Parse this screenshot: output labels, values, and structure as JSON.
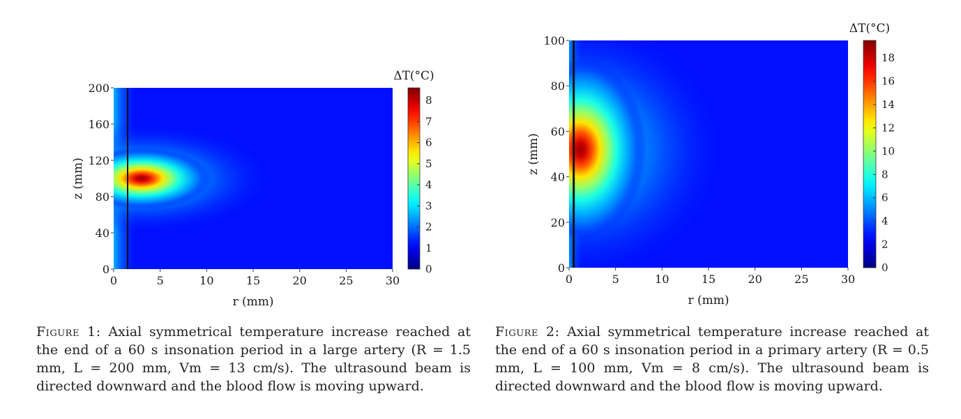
{
  "chart_data": [
    {
      "type": "heatmap",
      "xlabel": "r (mm)",
      "ylabel": "z (mm)",
      "xlim": [
        0,
        30
      ],
      "ylim": [
        0,
        200
      ],
      "x_ticks": [
        "0",
        "5",
        "10",
        "15",
        "20",
        "25",
        "30"
      ],
      "y_ticks": [
        "0",
        "40",
        "80",
        "120",
        "160",
        "200"
      ],
      "colorbar": {
        "label": "ΔT(°C)",
        "range": [
          0,
          8.6
        ],
        "ticks": [
          "0",
          "1",
          "2",
          "3",
          "4",
          "5",
          "6",
          "7",
          "8"
        ],
        "colormap": "jet"
      },
      "artery_wall_r": 1.5,
      "peak": {
        "r": 3,
        "z": 100,
        "dT": 8.6
      },
      "caption_label": "Figure 1:",
      "caption_text": "Axial symmetrical temperature increase reached at the end of a 60 s insonation period in a large artery (R = 1.5 mm, L = 200 mm, Vm = 13 cm/s). The ultrasound beam is directed downward and the blood flow is moving upward."
    },
    {
      "type": "heatmap",
      "xlabel": "r (mm)",
      "ylabel": "z (mm)",
      "xlim": [
        0,
        30
      ],
      "ylim": [
        0,
        100
      ],
      "x_ticks": [
        "0",
        "5",
        "10",
        "15",
        "20",
        "25",
        "30"
      ],
      "y_ticks": [
        "0",
        "20",
        "40",
        "60",
        "80",
        "100"
      ],
      "colorbar": {
        "label": "ΔT(°C)",
        "range": [
          0,
          19.5
        ],
        "ticks": [
          "0",
          "2",
          "4",
          "6",
          "8",
          "10",
          "12",
          "14",
          "16",
          "18"
        ],
        "colormap": "jet"
      },
      "artery_wall_r": 0.5,
      "peak": {
        "r": 1.2,
        "z": 52,
        "dT": 19.5
      },
      "caption_label": "Figure 2:",
      "caption_text": "Axial symmetrical temperature increase reached at the end of a 60 s insonation period in a primary artery (R = 0.5 mm, L = 100 mm, Vm = 8 cm/s). The ultrasound beam is directed downward and the blood flow is moving upward."
    }
  ]
}
